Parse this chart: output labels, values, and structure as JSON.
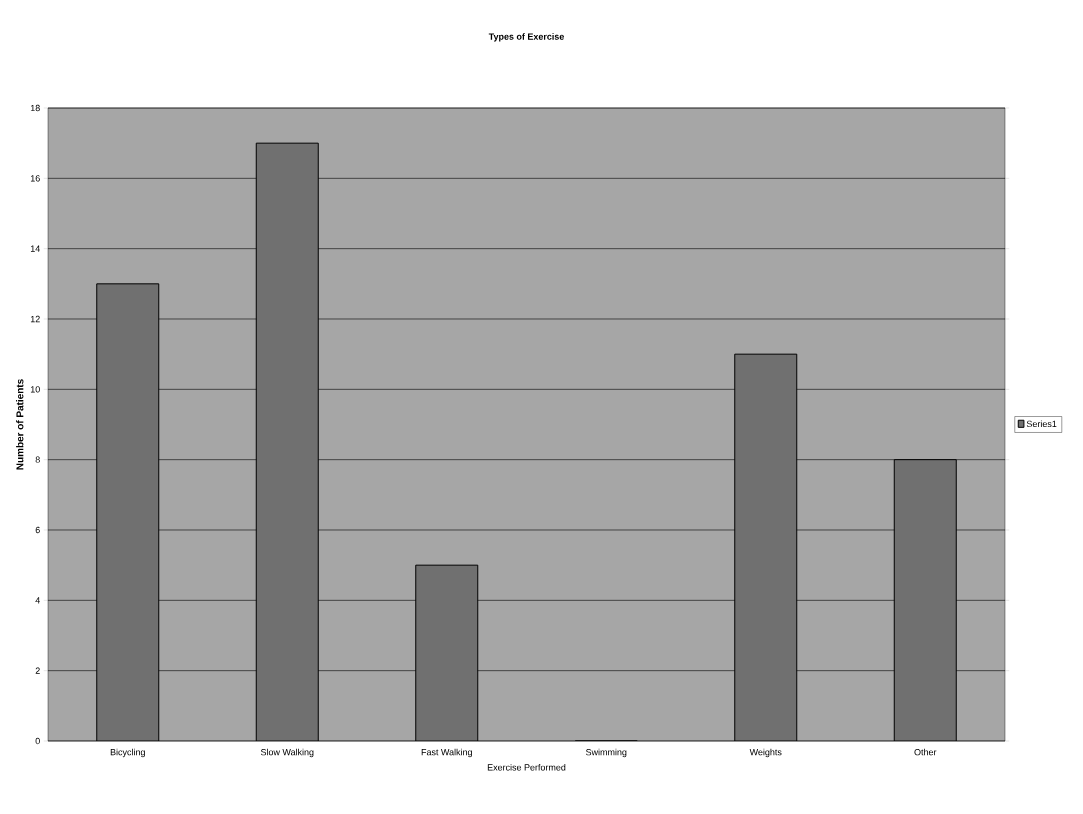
{
  "chart_data": {
    "type": "bar",
    "title": "Types of Exercise",
    "xlabel": "Exercise Performed",
    "ylabel": "Number of Patients",
    "categories": [
      "Bicycling",
      "Slow Walking",
      "Fast Walking",
      "Swimming",
      "Weights",
      "Other"
    ],
    "series": [
      {
        "name": "Series1",
        "color": "#707070",
        "values": [
          13,
          17,
          5,
          0,
          11,
          8
        ]
      }
    ],
    "ylim": [
      0,
      18
    ],
    "yticks": [
      0,
      2,
      4,
      6,
      8,
      10,
      12,
      14,
      16,
      18
    ],
    "grid": "y",
    "legend": "right"
  }
}
